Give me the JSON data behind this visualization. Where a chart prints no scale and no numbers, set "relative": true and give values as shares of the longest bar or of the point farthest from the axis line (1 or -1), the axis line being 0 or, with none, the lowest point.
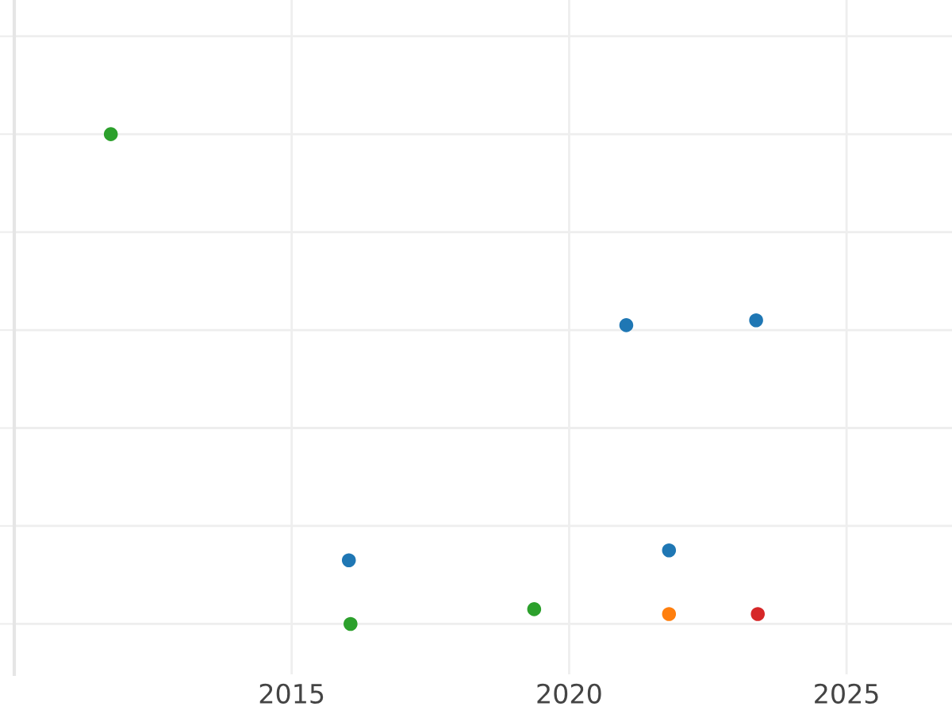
{
  "chart_data": {
    "type": "scatter",
    "relative": true,
    "xlim": [
      2010,
      2026.9
    ],
    "xticks": [
      2015,
      2020,
      2025
    ],
    "grid": true,
    "marker": "circle",
    "tick_labels": "x",
    "series": [
      {
        "color": "#1f77b4",
        "x": [
          2021.03,
          2023.37,
          2016.03,
          2021.8
        ],
        "values": [
          0.61,
          0.62,
          0.13,
          0.15
        ]
      },
      {
        "color": "#2ca02c",
        "x": [
          2011.74,
          2016.06,
          2019.37
        ],
        "values": [
          1,
          0,
          0.03
        ]
      },
      {
        "color": "#ff7f0e",
        "x": [
          2021.8
        ],
        "values": [
          0.02
        ]
      },
      {
        "color": "#d62728",
        "x": [
          2023.4
        ],
        "values": [
          0.02
        ]
      }
    ]
  }
}
